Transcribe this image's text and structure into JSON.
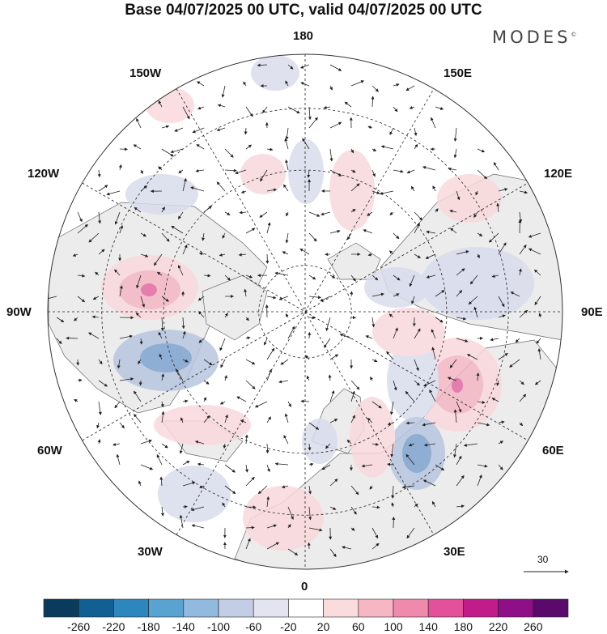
{
  "title": "Base 04/07/2025 00 UTC, valid 04/07/2025 00 UTC",
  "brand": "MODES",
  "brand_mark": "©",
  "longitude_labels": {
    "top": "180",
    "bottom": "0",
    "left": "90W",
    "right": "90E",
    "upper_left": "150W",
    "upper_right": "150E",
    "mid_left_upper": "120W",
    "mid_right_upper": "120E",
    "mid_left_lower": "60W",
    "mid_right_lower": "60E",
    "lower_left": "30W",
    "lower_right": "30E"
  },
  "vector_scale": {
    "label": "30"
  },
  "colorbar": {
    "labels": [
      "-260",
      "-220",
      "-180",
      "-140",
      "-100",
      "-60",
      "-20",
      "20",
      "60",
      "100",
      "140",
      "180",
      "220",
      "260"
    ],
    "colors": [
      "#0b3b5c",
      "#125f93",
      "#2d86bd",
      "#5aa3d0",
      "#91bade",
      "#c4cde6",
      "#e4e4f1",
      "#ffffff",
      "#fbdcdc",
      "#f6b6c3",
      "#f08aac",
      "#e3519a",
      "#c01c8a",
      "#8e0f87",
      "#5a0a6b"
    ]
  },
  "anomaly_colors": {
    "neg_weak": "#d9dcec",
    "neg_mid": "#b8c6e0",
    "neg_strong": "#7fa4cf",
    "pos_weak": "#f9d9dc",
    "pos_mid": "#f2b6c4",
    "pos_strong": "#e46aa4"
  }
}
